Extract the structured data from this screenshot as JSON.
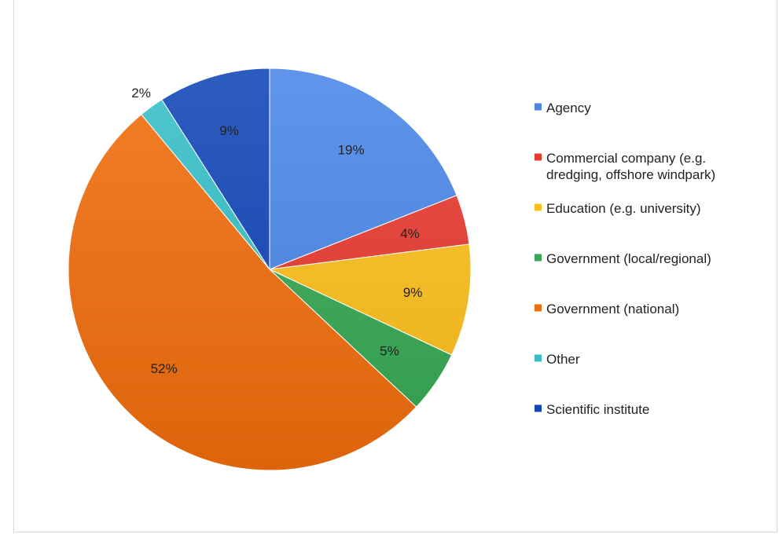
{
  "chart_data": {
    "type": "pie",
    "title": "",
    "legend_position": "right",
    "slices": [
      {
        "label": "Agency",
        "value": 19,
        "display": "19%",
        "color": "#4a86e8"
      },
      {
        "label": "Commercial company (e.g. dredging, offshore windpark)",
        "legend_lines": [
          "Commercial company (e.g.",
          "dredging, offshore windpark)"
        ],
        "value": 4,
        "display": "4%",
        "color": "#e8392f"
      },
      {
        "label": "Education (e.g. university)",
        "value": 9,
        "display": "9%",
        "color": "#fcbf1b"
      },
      {
        "label": "Government (local/regional)",
        "value": 5,
        "display": "5%",
        "color": "#36a853"
      },
      {
        "label": "Government (national)",
        "value": 52,
        "display": "52%",
        "color": "#f06d0c"
      },
      {
        "label": "Other",
        "value": 2,
        "display": "2%",
        "color": "#36bfc6"
      },
      {
        "label": "Scientific institute",
        "value": 9,
        "display": "9%",
        "color": "#1046b8"
      }
    ]
  }
}
